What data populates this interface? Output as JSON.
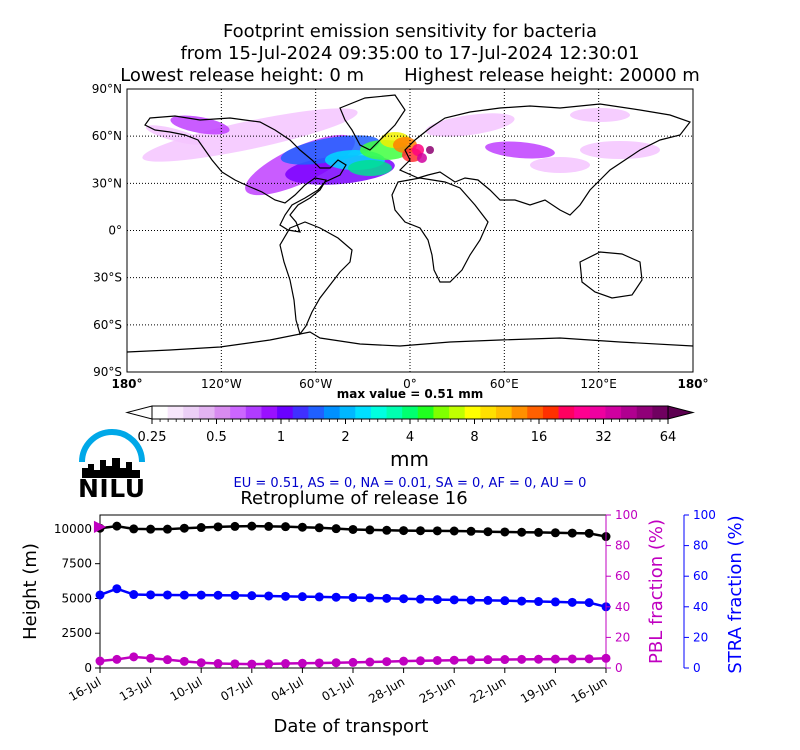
{
  "header": {
    "line1": "Footprint emission sensitivity for bacteria",
    "line2": "from 15-Jul-2024 09:35:00 to 17-Jul-2024 12:30:01",
    "line3": "Lowest release height: 0 m       Highest release height: 20000 m"
  },
  "map": {
    "lat_labels": [
      "90°N",
      "60°N",
      "30°N",
      "0°",
      "30°S",
      "60°S",
      "90°S"
    ],
    "lon_labels": [
      "180°",
      "120°W",
      "60°W",
      "0°",
      "60°E",
      "120°E",
      "180°"
    ],
    "lon_range": [
      -180,
      180
    ],
    "lat_range": [
      -90,
      90
    ],
    "grid": "dotted",
    "footprint_colors": [
      "#f4c4ff",
      "#c040ff",
      "#7a00ff",
      "#2060ff",
      "#00d8ff",
      "#00e090",
      "#40ff40",
      "#f0f000",
      "#ff8000",
      "#ff3030",
      "#ff0080",
      "#d000a0",
      "#8c0070"
    ]
  },
  "colorbar": {
    "max_value_label": "max value = 0.51 mm",
    "unit": "mm",
    "tick_labels": [
      "0.25",
      "0.5",
      "1",
      "2",
      "4",
      "8",
      "16",
      "32",
      "64"
    ],
    "colors": [
      "#ffffff",
      "#f7e6fb",
      "#eccff6",
      "#e3b3f2",
      "#d88bf0",
      "#cc66ff",
      "#b03cff",
      "#9a10ff",
      "#6a00ff",
      "#4030ff",
      "#2060ff",
      "#0090ff",
      "#00b8ff",
      "#00e0ff",
      "#00ffe0",
      "#00ffb0",
      "#00ff70",
      "#20ff20",
      "#80ff00",
      "#c0ff00",
      "#ffff00",
      "#ffe000",
      "#ffc000",
      "#ff9000",
      "#ff6000",
      "#ff3000",
      "#ff0060",
      "#ff0090",
      "#ee00a0",
      "#d000a0",
      "#b00090",
      "#900078",
      "#700060"
    ]
  },
  "fractions_text": "EU = 0.51,  AS = 0,  NA = 0.01,  SA = 0,  AF = 0,  AU = 0",
  "logo": {
    "text": "NILU",
    "arc_color": "#00a8e8"
  },
  "chart_data": {
    "type": "line",
    "title": "Retroplume of release 16",
    "xlabel": "Date of transport",
    "ylabel": "Height (m)",
    "ylim": [
      0,
      11000
    ],
    "x_ticks": [
      "16-Jul",
      "13-Jul",
      "10-Jul",
      "07-Jul",
      "04-Jul",
      "01-Jul",
      "28-Jun",
      "25-Jun",
      "22-Jun",
      "19-Jun",
      "16-Jun"
    ],
    "y_ticks": [
      "0",
      "2500",
      "5000",
      "7500",
      "10000"
    ],
    "series": [
      {
        "role": "height",
        "color": "#000000",
        "values": [
          10050,
          10200,
          10000,
          9980,
          9980,
          10050,
          10100,
          10150,
          10180,
          10200,
          10180,
          10160,
          10120,
          10080,
          10020,
          9960,
          9930,
          9900,
          9880,
          9870,
          9860,
          9850,
          9830,
          9800,
          9780,
          9760,
          9750,
          9720,
          9700,
          9680,
          9450
        ]
      },
      {
        "role": "height",
        "color": "#0000ff",
        "values": [
          5250,
          5700,
          5280,
          5260,
          5250,
          5240,
          5240,
          5230,
          5220,
          5200,
          5180,
          5150,
          5130,
          5110,
          5090,
          5070,
          5040,
          5010,
          4980,
          4950,
          4920,
          4900,
          4880,
          4860,
          4840,
          4810,
          4780,
          4750,
          4720,
          4700,
          4400
        ]
      },
      {
        "role": "height",
        "color": "#c000c0",
        "values": [
          500,
          620,
          800,
          700,
          600,
          480,
          380,
          320,
          300,
          280,
          300,
          320,
          340,
          360,
          380,
          400,
          430,
          460,
          490,
          520,
          540,
          560,
          580,
          600,
          610,
          620,
          630,
          640,
          650,
          660,
          700
        ]
      }
    ],
    "pbl_axis": {
      "label": "PBL fraction (%)",
      "color": "#c000c0",
      "ticks": [
        "0",
        "20",
        "40",
        "60",
        "80",
        "100"
      ],
      "ylim": [
        0,
        100
      ],
      "marker_value": 92
    },
    "stra_axis": {
      "label": "STRA fraction (%)",
      "color": "#0000ff",
      "ticks": [
        "0",
        "20",
        "40",
        "60",
        "80",
        "100"
      ],
      "ylim": [
        0,
        100
      ]
    }
  }
}
